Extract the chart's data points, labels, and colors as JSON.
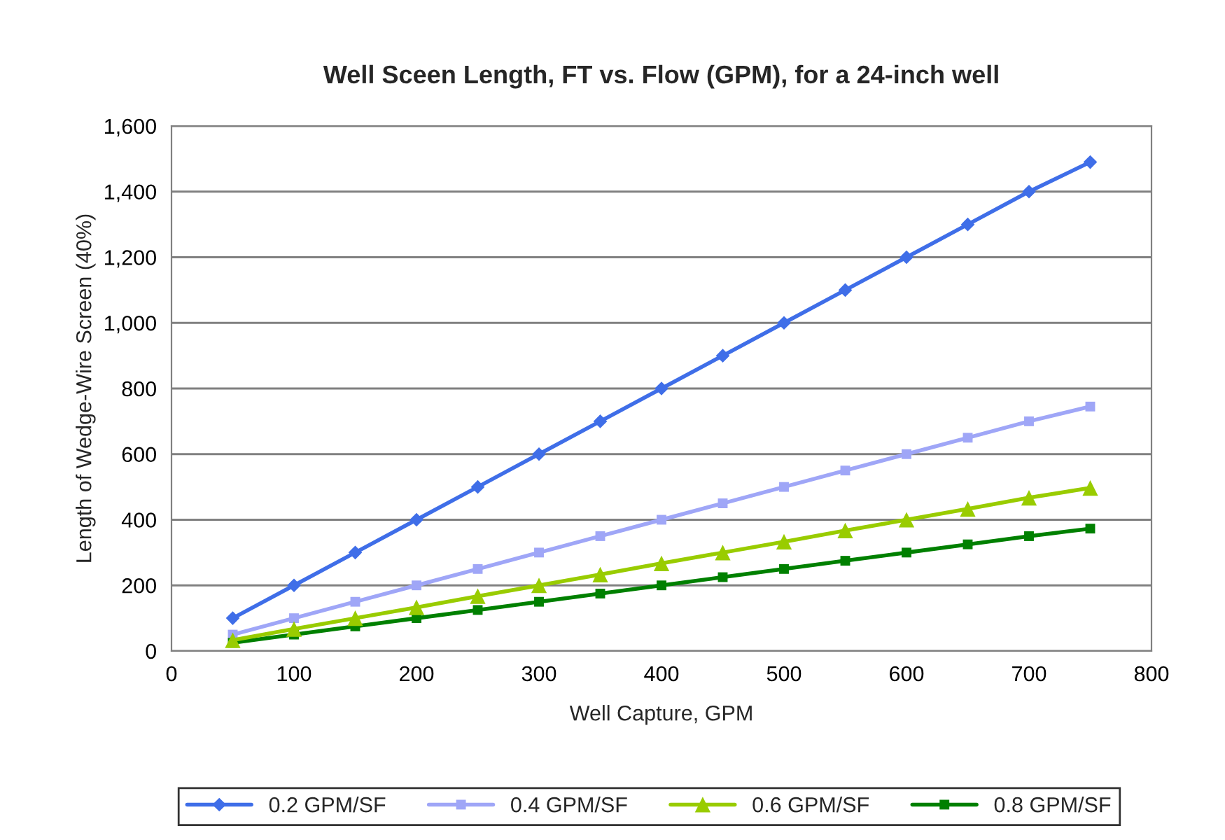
{
  "chart_data": {
    "type": "line",
    "title": "Well Sceen Length, FT vs. Flow (GPM), for a 24-inch well",
    "xlabel": "Well Capture, GPM",
    "ylabel": "Length of Wedge-Wire Screen (40%)",
    "x": [
      50,
      100,
      150,
      200,
      250,
      300,
      350,
      400,
      450,
      500,
      550,
      600,
      650,
      700,
      750
    ],
    "series": [
      {
        "name": "0.2 GPM/SF",
        "color": "#3f6ee8",
        "marker": "diamond",
        "values": [
          100,
          200,
          300,
          400,
          500,
          600,
          700,
          800,
          900,
          1000,
          1100,
          1200,
          1300,
          1400,
          1490
        ]
      },
      {
        "name": "0.4 GPM/SF",
        "color": "#9fa6f7",
        "marker": "square",
        "values": [
          50,
          100,
          150,
          200,
          250,
          300,
          350,
          400,
          450,
          500,
          550,
          600,
          650,
          700,
          745
        ]
      },
      {
        "name": "0.6 GPM/SF",
        "color": "#99cc00",
        "marker": "triangle",
        "values": [
          33,
          67,
          100,
          133,
          167,
          200,
          233,
          267,
          300,
          333,
          367,
          400,
          433,
          467,
          497
        ]
      },
      {
        "name": "0.8 GPM/SF",
        "color": "#008000",
        "marker": "square",
        "values": [
          25,
          50,
          75,
          100,
          125,
          150,
          175,
          200,
          225,
          250,
          275,
          300,
          325,
          350,
          373
        ]
      }
    ],
    "xlim": [
      0,
      800
    ],
    "xticks": [
      0,
      100,
      200,
      300,
      400,
      500,
      600,
      700,
      800
    ],
    "ylim": [
      0,
      1600
    ],
    "yticks": [
      0,
      200,
      400,
      600,
      800,
      {
        "value": 1000,
        "label": "1,000"
      },
      {
        "value": 1200,
        "label": "1,200"
      },
      {
        "value": 1400,
        "label": "1,400"
      },
      {
        "value": 1600,
        "label": "1,600"
      }
    ],
    "grid": "y",
    "legend": "bottom",
    "line_style": "solid"
  }
}
